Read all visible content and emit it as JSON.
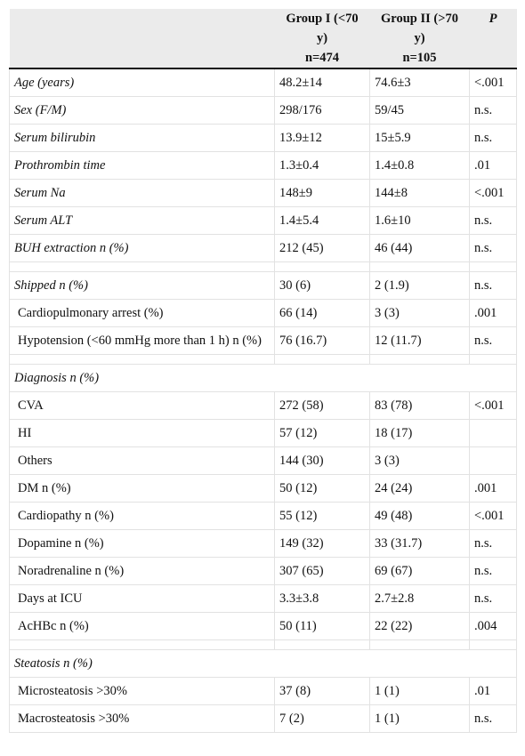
{
  "table": {
    "header": [
      {
        "label": "Group I (<70 y)",
        "n": "n=474"
      },
      {
        "label": "Group II (>70 y)",
        "n": "n=105"
      },
      {
        "label": "P"
      }
    ],
    "sections": [
      [
        [
          "Age (years)",
          "48.2±14",
          "74.6±3",
          "<.001"
        ],
        [
          "Sex (F/M)",
          "298/176",
          "59/45",
          "n.s."
        ],
        [
          "Serum bilirubin",
          "13.9±12",
          "15±5.9",
          "n.s."
        ],
        [
          "Prothrombin time",
          "1.3±0.4",
          "1.4±0.8",
          ".01"
        ],
        [
          "Serum Na",
          "148±9",
          "144±8",
          "<.001"
        ],
        [
          "Serum ALT",
          "1.4±5.4",
          "1.6±10",
          "n.s."
        ],
        [
          "BUH extraction n (%)",
          "212 (45)",
          "46 (44)",
          "n.s."
        ]
      ],
      [
        [
          "Shipped n (%)",
          "30 (6)",
          "2 (1.9)",
          "n.s."
        ],
        [
          "Cardiopulmonary arrest (%)",
          "66 (14)",
          "3 (3)",
          ".001"
        ],
        [
          "Hypotension (<60 mmHg more than 1 h) n (%)",
          "76 (16.7)",
          "12 (11.7)",
          "n.s."
        ]
      ],
      [
        [
          "Diagnosis n (%)"
        ],
        [
          "CVA",
          "272 (58)",
          "83 (78)",
          "<.001"
        ],
        [
          "HI",
          "57 (12)",
          "18 (17)"
        ],
        [
          "Others",
          "144 (30)",
          "3 (3)"
        ],
        [
          "DM n (%)",
          "50 (12)",
          "24 (24)",
          ".001"
        ],
        [
          "Cardiopathy n (%)",
          "55 (12)",
          "49 (48)",
          "<.001"
        ],
        [
          "Dopamine n (%)",
          "149 (32)",
          "33 (31.7)",
          "n.s."
        ],
        [
          "Noradrenaline n (%)",
          "307 (65)",
          "69 (67)",
          "n.s."
        ],
        [
          "Days at ICU",
          "3.3±3.8",
          "2.7±2.8",
          "n.s."
        ],
        [
          "AcHBc n (%)",
          "50 (11)",
          "22 (22)",
          ".004"
        ]
      ],
      [
        [
          "Steatosis n (%)"
        ],
        [
          "Microsteatosis >30%",
          "37 (8)",
          "1 (1)",
          ".01"
        ],
        [
          "Macrosteatosis >30%",
          "7 (2)",
          "1 (1)",
          "n.s."
        ]
      ]
    ]
  }
}
